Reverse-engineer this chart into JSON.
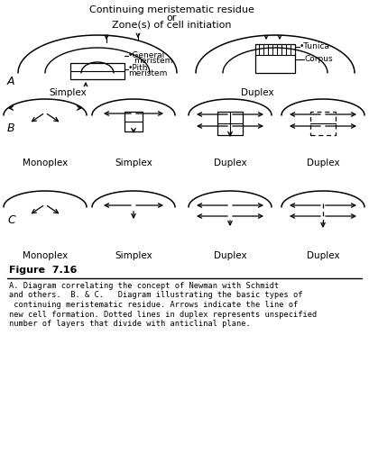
{
  "title_line1": "Continuing meristematic residue",
  "title_line2": "or",
  "title_line3": "Zone(s) of cell initiation",
  "bg_color": "#ffffff",
  "text_color": "#000000",
  "fig_caption_title": "Figure  7.16",
  "fig_caption_body_lines": [
    "A. Diagram correlating the concept of Newman with Schmidt",
    "and others.  B. & C.   Diagram illustrating the basic types of",
    " continuing meristematic residue. Arrows indicate the line of",
    "new cell formation. Dotted lines in duplex represents unspecified",
    "number of layers that divide with anticlinal plane."
  ],
  "section_labels": [
    "A",
    "B",
    "C"
  ],
  "B_labels": [
    "Monoplex",
    "Simplex",
    "Duplex",
    "Duplex"
  ],
  "C_labels": [
    "Monoplex",
    "Simplex",
    "Duplex",
    "Duplex"
  ],
  "A_left_label": "Simplex",
  "A_right_label": "Duplex",
  "ann_general": "General\nmeristem",
  "ann_pith": "Pith\nmeristem",
  "ann_tunica": "Tunica",
  "ann_corpus": "Corpus"
}
